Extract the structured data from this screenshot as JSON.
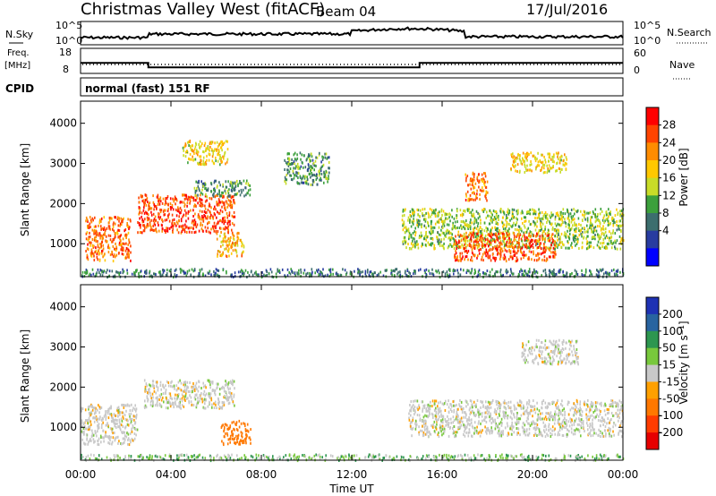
{
  "header": {
    "title": "Christmas Valley West (fitACF)",
    "beam": "Beam 04",
    "date": "17/Jul/2016"
  },
  "status_panels": {
    "nsky_label": "N.Sky",
    "nsky_ticks": [
      "10^5",
      "10^0"
    ],
    "nsearch_label": "N.Search",
    "freq_label_1": "Freq.",
    "freq_label_2": "[MHz]",
    "freq_ticks": [
      "18",
      "8"
    ],
    "nave_ticks": [
      "60",
      "0"
    ],
    "nave_label": "Nave",
    "cpid_label": "CPID",
    "cpid_value": "normal (fast) 151 RF",
    "freq_series_mhz": [
      {
        "start_h": 0,
        "end_h": 3,
        "value": 12.7
      },
      {
        "start_h": 3,
        "end_h": 15,
        "value": 10.5
      },
      {
        "start_h": 15,
        "end_h": 24,
        "value": 12.7
      }
    ]
  },
  "axes": {
    "ylabel": "Slant Range [km]",
    "xlabel": "Time UT",
    "x_ticks": [
      "00:00",
      "04:00",
      "08:00",
      "12:00",
      "16:00",
      "20:00",
      "00:00"
    ],
    "y_ticks": [
      "1000",
      "2000",
      "3000",
      "4000"
    ]
  },
  "colorbars": {
    "power": {
      "label": "Power [dB]",
      "ticks": [
        "28",
        "24",
        "20",
        "16",
        "12",
        "8",
        "4"
      ],
      "colors": [
        "#ff0000",
        "#ff4400",
        "#ff8c00",
        "#ffc800",
        "#c8dc28",
        "#3ca03c",
        "#3c6e6e",
        "#283ca0",
        "#0000ff"
      ]
    },
    "velocity": {
      "label": "Velocity [m s⁻¹]",
      "ticks": [
        "200",
        "100",
        "50",
        "15",
        "-15",
        "-50",
        "-100",
        "-200"
      ],
      "colors": [
        "#1e32b4",
        "#2864a0",
        "#2d9650",
        "#78c83c",
        "#c8c8c8",
        "#ffa000",
        "#ff7800",
        "#ff3c00",
        "#e60000"
      ]
    }
  },
  "chart_data": [
    {
      "type": "heatmap",
      "name": "Power",
      "x_range_hours": [
        0,
        24
      ],
      "y_range_km": [
        180,
        4550
      ],
      "regions": [
        {
          "x": [
            0.2,
            2.2
          ],
          "y": [
            600,
            1700
          ],
          "value_db": 24
        },
        {
          "x": [
            2.5,
            6.8
          ],
          "y": [
            1300,
            2250
          ],
          "value_db": 26
        },
        {
          "x": [
            4.5,
            6.5
          ],
          "y": [
            3000,
            3600
          ],
          "value_db": 18
        },
        {
          "x": [
            6.0,
            7.2
          ],
          "y": [
            700,
            1300
          ],
          "value_db": 20
        },
        {
          "x": [
            5.0,
            7.5
          ],
          "y": [
            2200,
            2600
          ],
          "value_db": 10
        },
        {
          "x": [
            9.0,
            11.0
          ],
          "y": [
            2500,
            3300
          ],
          "value_db": 10
        },
        {
          "x": [
            14.2,
            24.0
          ],
          "y": [
            900,
            1900
          ],
          "value_db": 14
        },
        {
          "x": [
            16.5,
            21.0
          ],
          "y": [
            600,
            1300
          ],
          "value_db": 26
        },
        {
          "x": [
            17.0,
            18.0
          ],
          "y": [
            2100,
            2800
          ],
          "value_db": 24
        },
        {
          "x": [
            19.0,
            21.5
          ],
          "y": [
            2800,
            3300
          ],
          "value_db": 18
        },
        {
          "x": [
            0.0,
            24.0
          ],
          "y": [
            200,
            400
          ],
          "value_db": 8
        }
      ]
    },
    {
      "type": "heatmap",
      "name": "Velocity",
      "x_range_hours": [
        0,
        24
      ],
      "y_range_km": [
        180,
        4550
      ],
      "regions": [
        {
          "x": [
            0.0,
            2.5
          ],
          "y": [
            600,
            1600
          ],
          "value_ms": 0
        },
        {
          "x": [
            2.8,
            6.8
          ],
          "y": [
            1500,
            2200
          ],
          "value_ms": 0
        },
        {
          "x": [
            6.2,
            7.5
          ],
          "y": [
            600,
            1200
          ],
          "value_ms": -80
        },
        {
          "x": [
            14.5,
            24.0
          ],
          "y": [
            800,
            1700
          ],
          "value_ms": 0
        },
        {
          "x": [
            19.5,
            22.0
          ],
          "y": [
            2600,
            3200
          ],
          "value_ms": 0
        },
        {
          "x": [
            0.0,
            24.0
          ],
          "y": [
            200,
            350
          ],
          "value_ms": 20
        }
      ]
    }
  ]
}
